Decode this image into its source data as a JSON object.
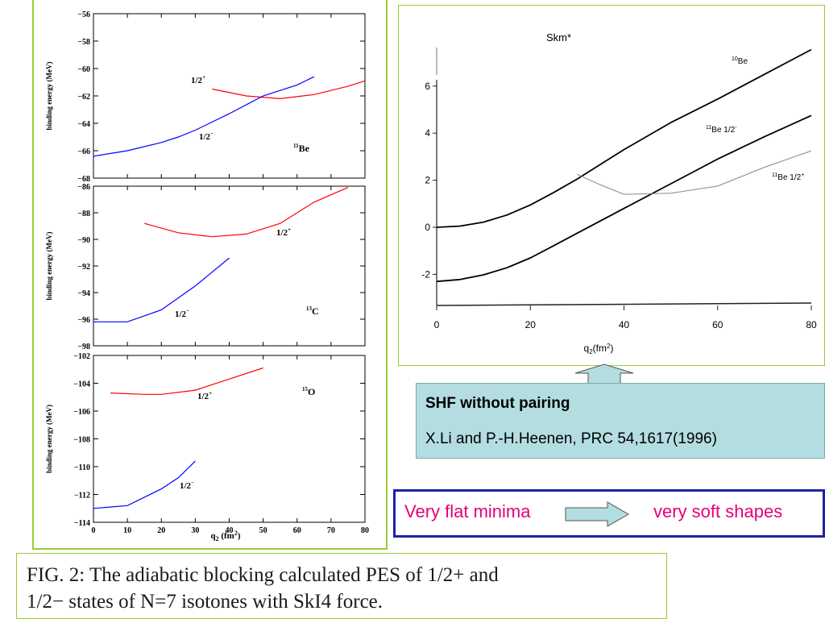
{
  "caption": {
    "line1": "FIG. 2: The adiabatic blocking calculated PES of 1/2+ and",
    "line2": "1/2− states of N=7 isotones with SkI4 force."
  },
  "shf_box": {
    "title": "SHF without pairing",
    "reference": "X.Li and P.-H.Heenen, PRC 54,1617(1996)",
    "background": "#b3dde1"
  },
  "flat_box": {
    "left_text": "Very flat minima",
    "right_text": "very soft shapes",
    "text_color": "#e4007c",
    "border_color": "#1e22a8"
  },
  "chart_data": [
    {
      "type": "line",
      "nucleus": "11Be",
      "ylabel": "binding energy (MeV)",
      "ylim": [
        -68,
        -56
      ],
      "xlim": [
        0,
        80
      ],
      "yticks": [
        "-68",
        "-66",
        "-64",
        "-62",
        "-60",
        "-58",
        "-56"
      ],
      "series": [
        {
          "name": "1/2+",
          "color": "#ff0000",
          "x": [
            35,
            45,
            55,
            65,
            75,
            80
          ],
          "values": [
            -61.5,
            -62.0,
            -62.2,
            -61.9,
            -61.3,
            -60.9
          ]
        },
        {
          "name": "1/2−",
          "color": "#0000ff",
          "x": [
            0,
            10,
            20,
            25,
            30,
            40,
            50,
            60,
            65
          ],
          "values": [
            -66.4,
            -66.0,
            -65.4,
            -65.0,
            -64.5,
            -63.3,
            -62.0,
            -61.2,
            -60.6
          ]
        }
      ]
    },
    {
      "type": "line",
      "nucleus": "13C",
      "ylabel": "binding energy (MeV)",
      "ylim": [
        -98,
        -86
      ],
      "xlim": [
        0,
        80
      ],
      "yticks": [
        "-98",
        "-96",
        "-94",
        "-92",
        "-90",
        "-88",
        "-86"
      ],
      "series": [
        {
          "name": "1/2+",
          "color": "#ff0000",
          "x": [
            15,
            25,
            35,
            45,
            55,
            65,
            75
          ],
          "values": [
            -88.8,
            -89.5,
            -89.8,
            -89.6,
            -88.8,
            -87.2,
            -86.1
          ]
        },
        {
          "name": "1/2−",
          "color": "#0000ff",
          "x": [
            0,
            5,
            10,
            20,
            30,
            40
          ],
          "values": [
            -96.2,
            -96.2,
            -96.2,
            -95.3,
            -93.5,
            -91.4
          ]
        }
      ]
    },
    {
      "type": "line",
      "nucleus": "15O",
      "ylabel": "binding energy (MeV)",
      "ylim": [
        -114,
        -102
      ],
      "xlim": [
        0,
        80
      ],
      "xlabel": "q₂ (fm²)",
      "xticks": [
        "0",
        "10",
        "20",
        "30",
        "40",
        "50",
        "60",
        "70",
        "80"
      ],
      "yticks": [
        "-114",
        "-112",
        "-110",
        "-108",
        "-106",
        "-104",
        "-102"
      ],
      "series": [
        {
          "name": "1/2+",
          "color": "#ff0000",
          "x": [
            5,
            15,
            20,
            30,
            40,
            50
          ],
          "values": [
            -104.7,
            -104.8,
            -104.8,
            -104.5,
            -103.7,
            -102.9
          ]
        },
        {
          "name": "1/2−",
          "color": "#0000ff",
          "x": [
            0,
            10,
            20,
            25,
            30
          ],
          "values": [
            -113.0,
            -112.8,
            -111.6,
            -110.8,
            -109.6
          ]
        }
      ]
    },
    {
      "type": "line",
      "title": "Skm*",
      "xlabel": "q₂(fm²)",
      "xlim": [
        0,
        80
      ],
      "ylim": [
        -3.3,
        7.7
      ],
      "xticks": [
        "0",
        "20",
        "40",
        "60",
        "80"
      ],
      "yticks": [
        "-2",
        "0",
        "2",
        "4",
        "6"
      ],
      "series": [
        {
          "name": "10Be",
          "color": "#000000",
          "x": [
            0,
            5,
            10,
            15,
            20,
            25,
            30,
            40,
            50,
            60,
            70,
            80
          ],
          "values": [
            0.0,
            0.05,
            0.22,
            0.52,
            0.95,
            1.48,
            2.05,
            3.3,
            4.45,
            5.45,
            6.5,
            7.55
          ]
        },
        {
          "name": "11Be 1/2-",
          "color": "#000000",
          "x": [
            0,
            5,
            10,
            15,
            20,
            25,
            30,
            40,
            50,
            60,
            70,
            80
          ],
          "values": [
            -2.3,
            -2.22,
            -2.02,
            -1.72,
            -1.3,
            -0.78,
            -0.25,
            0.8,
            1.85,
            2.9,
            3.85,
            4.75
          ]
        },
        {
          "name": "11Be 1/2+",
          "color": "#888888",
          "x": [
            30,
            35,
            40,
            50,
            60,
            70,
            80
          ],
          "values": [
            2.25,
            1.8,
            1.4,
            1.45,
            1.75,
            2.55,
            3.25
          ]
        }
      ]
    }
  ]
}
